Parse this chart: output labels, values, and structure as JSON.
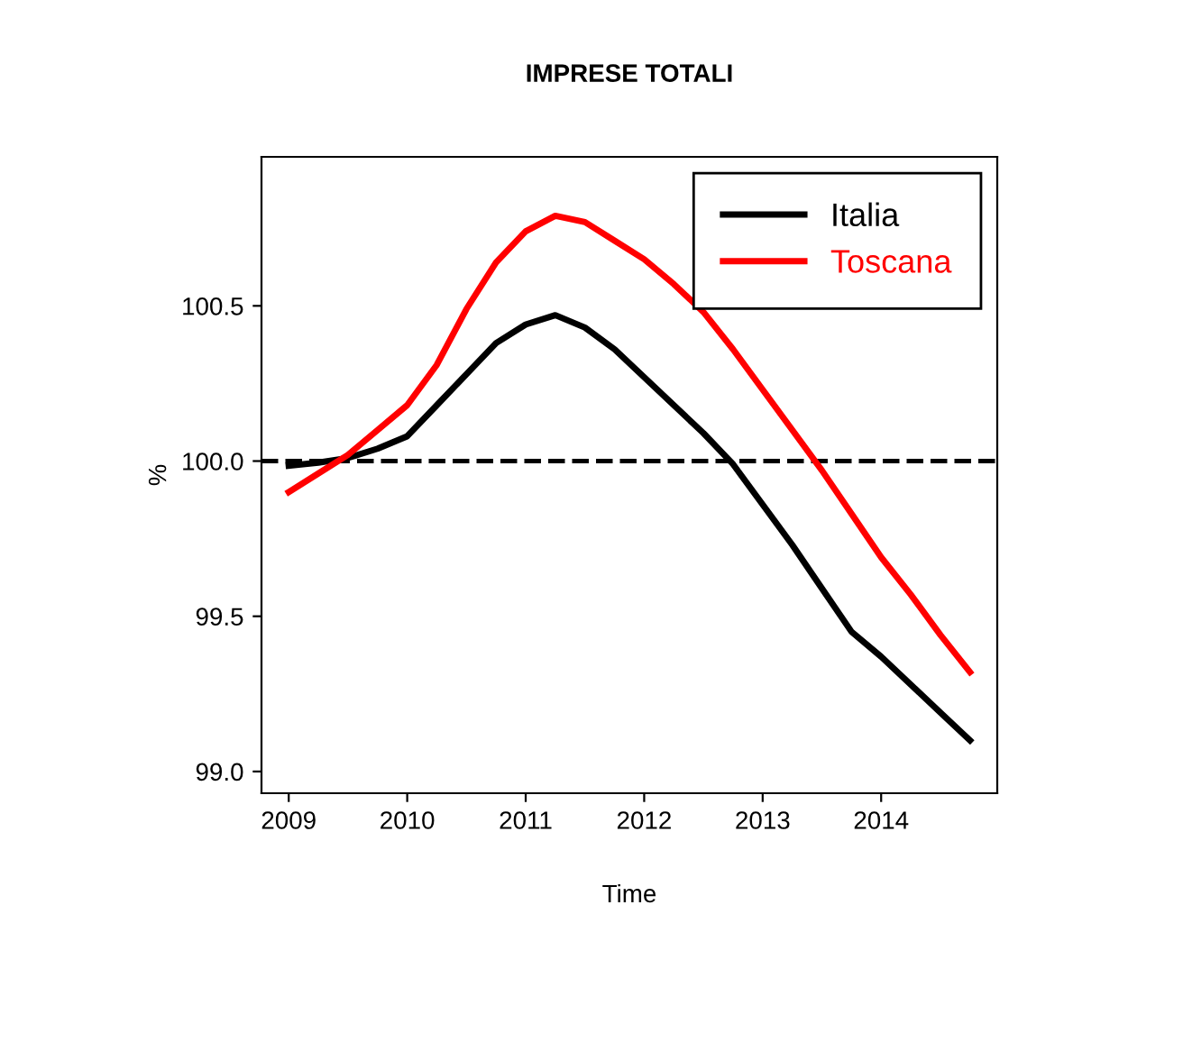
{
  "chart_data": {
    "type": "line",
    "title": "IMPRESE TOTALI",
    "xlabel": "Time",
    "ylabel": "%",
    "x": [
      2009.0,
      2009.25,
      2009.5,
      2009.75,
      2010.0,
      2010.25,
      2010.5,
      2010.75,
      2011.0,
      2011.25,
      2011.5,
      2011.75,
      2012.0,
      2012.25,
      2012.5,
      2012.75,
      2013.0,
      2013.25,
      2013.5,
      2013.75,
      2014.0,
      2014.25,
      2014.5,
      2014.75
    ],
    "series": [
      {
        "name": "Italia",
        "color": "#000000",
        "values": [
          99.985,
          99.995,
          100.01,
          100.04,
          100.08,
          100.18,
          100.28,
          100.38,
          100.44,
          100.47,
          100.43,
          100.36,
          100.27,
          100.18,
          100.09,
          99.99,
          99.86,
          99.73,
          99.59,
          99.45,
          99.37,
          99.28,
          99.19,
          99.1
        ]
      },
      {
        "name": "Toscana",
        "color": "#ff0000",
        "values": [
          99.9,
          99.96,
          100.02,
          100.1,
          100.18,
          100.31,
          100.49,
          100.64,
          100.74,
          100.79,
          100.77,
          100.71,
          100.65,
          100.57,
          100.48,
          100.36,
          100.23,
          100.1,
          99.97,
          99.83,
          99.69,
          99.57,
          99.44,
          99.32
        ]
      }
    ],
    "xlim": [
      2008.77,
      2014.98
    ],
    "ylim": [
      98.93,
      100.98
    ],
    "xticks": [
      2009,
      2010,
      2011,
      2012,
      2013,
      2014
    ],
    "yticks": [
      {
        "value": 99.0,
        "label": "99.0"
      },
      {
        "value": 99.5,
        "label": "99.5"
      },
      {
        "value": 100.0,
        "label": "100.0"
      },
      {
        "value": 100.5,
        "label": "100.5"
      }
    ],
    "ref_lines": [
      {
        "axis": "y",
        "value": 100.0,
        "color": "#000000",
        "line_style": "dashed"
      }
    ],
    "legend": "top right",
    "grid": false,
    "marker": "none",
    "line_style": "solid"
  }
}
